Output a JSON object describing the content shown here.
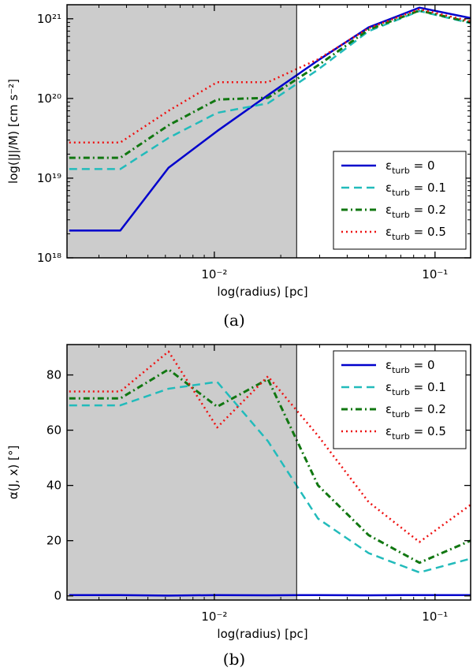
{
  "colors": {
    "series": [
      "#0000cc",
      "#22bbbb",
      "#117711",
      "#ee1111"
    ],
    "shade": "#cccccc"
  },
  "chart_data": [
    {
      "type": "line",
      "caption": "(a)",
      "xlabel": "log(radius) [pc]",
      "ylabel": "log(|J|/M) [cm s⁻²]",
      "xscale": "log",
      "yscale": "log",
      "xlim": [
        0.00215,
        0.145
      ],
      "ylim": [
        1e+18,
        1.5e+21
      ],
      "xticks": [
        {
          "value": 0.01,
          "label": "10⁻²"
        },
        {
          "value": 0.1,
          "label": "10⁻¹"
        }
      ],
      "yticks": [
        {
          "value": 1e+18,
          "label": "10¹⁸"
        },
        {
          "value": 1e+19,
          "label": "10¹⁹"
        },
        {
          "value": 1e+20,
          "label": "10²⁰"
        },
        {
          "value": 1e+21,
          "label": "10²¹"
        }
      ],
      "shaded_region": [
        0.00215,
        0.0236
      ],
      "vertical_line": 0.0236,
      "legend_position": "lower-right",
      "x": [
        0.0022,
        0.00375,
        0.0062,
        0.0103,
        0.0175,
        0.0295,
        0.05,
        0.085,
        0.145
      ],
      "series": [
        {
          "name": "ε_turb = 0",
          "name_sym": "ε",
          "name_sub": "turb",
          "name_val": " = 0",
          "values": [
            2.2e+18,
            2.2e+18,
            1.35e+19,
            3.9e+19,
            1.1e+20,
            3e+20,
            7.8e+20,
            1.38e+21,
            1.02e+21
          ]
        },
        {
          "name": "ε_turb = 0.1",
          "name_sym": "ε",
          "name_sub": "turb",
          "name_val": " = 0.1",
          "values": [
            1.3e+19,
            1.3e+19,
            3.2e+19,
            6.6e+19,
            8.7e+19,
            2.3e+20,
            7e+20,
            1.25e+21,
            8.8e+20
          ]
        },
        {
          "name": "ε_turb = 0.2",
          "name_sym": "ε",
          "name_sub": "turb",
          "name_val": " = 0.2",
          "values": [
            1.8e+19,
            1.8e+19,
            4.6e+19,
            9.7e+19,
            1.02e+20,
            2.6e+20,
            7.3e+20,
            1.27e+21,
            9e+20
          ]
        },
        {
          "name": "ε_turb = 0.5",
          "name_sym": "ε",
          "name_sub": "turb",
          "name_val": " = 0.5",
          "values": [
            2.8e+19,
            2.8e+19,
            7e+19,
            1.6e+20,
            1.6e+20,
            3.1e+20,
            7.6e+20,
            1.32e+21,
            9.3e+20
          ]
        }
      ]
    },
    {
      "type": "line",
      "caption": "(b)",
      "xlabel": "log(radius) [pc]",
      "ylabel": "α(J, x) [°]",
      "xscale": "log",
      "yscale": "linear",
      "xlim": [
        0.00215,
        0.145
      ],
      "ylim": [
        -1.5,
        91
      ],
      "xticks": [
        {
          "value": 0.01,
          "label": "10⁻²"
        },
        {
          "value": 0.1,
          "label": "10⁻¹"
        }
      ],
      "yticks": [
        {
          "value": 0,
          "label": "0"
        },
        {
          "value": 20,
          "label": "20"
        },
        {
          "value": 40,
          "label": "40"
        },
        {
          "value": 60,
          "label": "60"
        },
        {
          "value": 80,
          "label": "80"
        }
      ],
      "shaded_region": [
        0.00215,
        0.0236
      ],
      "vertical_line": 0.0236,
      "legend_position": "upper-right",
      "x": [
        0.0022,
        0.00375,
        0.0062,
        0.0103,
        0.0175,
        0.0295,
        0.05,
        0.085,
        0.145
      ],
      "series": [
        {
          "name": "ε_turb = 0",
          "name_sym": "ε",
          "name_sub": "turb",
          "name_val": " = 0",
          "values": [
            0.3,
            0.3,
            0.1,
            0.3,
            0.2,
            0.3,
            0.2,
            0.3,
            0.3
          ]
        },
        {
          "name": "ε_turb = 0.1",
          "name_sym": "ε",
          "name_sub": "turb",
          "name_val": " = 0.1",
          "values": [
            69,
            69,
            75,
            77.5,
            56,
            28,
            15.5,
            8.5,
            13.5
          ]
        },
        {
          "name": "ε_turb = 0.2",
          "name_sym": "ε",
          "name_sub": "turb",
          "name_val": " = 0.2",
          "values": [
            71.5,
            71.5,
            82,
            68.5,
            78.5,
            40,
            22,
            12,
            20
          ]
        },
        {
          "name": "ε_turb = 0.5",
          "name_sym": "ε",
          "name_sub": "turb",
          "name_val": " = 0.5",
          "values": [
            74,
            74,
            88.5,
            61,
            79.5,
            58,
            34,
            19.5,
            33
          ]
        }
      ]
    }
  ]
}
